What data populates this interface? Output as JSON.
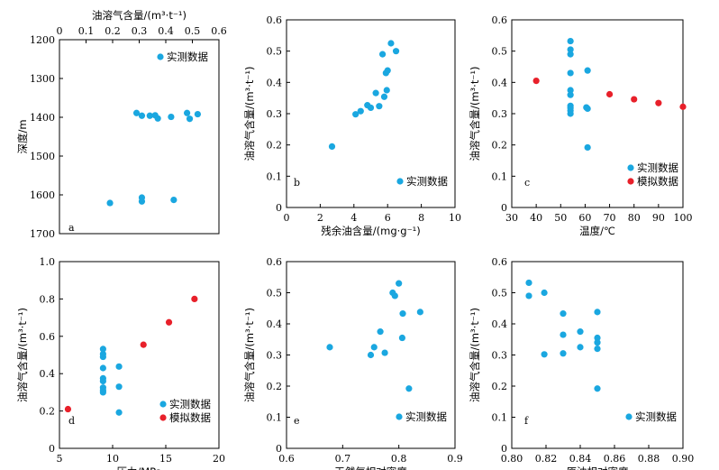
{
  "colors": {
    "measured": "#1aa7e0",
    "simulated": "#e8202a"
  },
  "chart_data": [
    {
      "type": "scatter",
      "panel": "a",
      "xlabel": "油溶气含量/(m³·t⁻¹)",
      "ylabel": "深度/m",
      "xlim": [
        0,
        0.6
      ],
      "ylim": [
        1200,
        1700
      ],
      "x_axis_position": "top",
      "y_inverted": true,
      "xticks": [
        "0",
        "0.1",
        "0.2",
        "0.3",
        "0.4",
        "0.5",
        "0.6"
      ],
      "yticks": [
        "1200",
        "1300",
        "1400",
        "1500",
        "1600",
        "1700"
      ],
      "legend_position": "top-right",
      "series": [
        {
          "name": "实测数据",
          "color": "measured",
          "points": [
            [
              0.19,
              1621
            ],
            [
              0.31,
              1607
            ],
            [
              0.31,
              1617
            ],
            [
              0.43,
              1613
            ],
            [
              0.29,
              1389
            ],
            [
              0.31,
              1396
            ],
            [
              0.34,
              1396
            ],
            [
              0.36,
              1395
            ],
            [
              0.37,
              1403
            ],
            [
              0.42,
              1399
            ],
            [
              0.48,
              1389
            ],
            [
              0.49,
              1404
            ],
            [
              0.52,
              1392
            ]
          ]
        }
      ]
    },
    {
      "type": "scatter",
      "panel": "b",
      "xlabel": "残余油含量/(mg·g⁻¹)",
      "ylabel": "油溶气含量/(m³·t⁻¹)",
      "xlim": [
        0,
        10
      ],
      "ylim": [
        0,
        0.6
      ],
      "xticks": [
        "0",
        "2",
        "4",
        "6",
        "8",
        "10"
      ],
      "yticks": [
        "0",
        "0.1",
        "0.2",
        "0.3",
        "0.4",
        "0.5",
        "0.6"
      ],
      "legend_position": "bottom-right",
      "series": [
        {
          "name": "实测数据",
          "color": "measured",
          "points": [
            [
              2.7,
              0.195
            ],
            [
              4.1,
              0.298
            ],
            [
              4.4,
              0.308
            ],
            [
              4.8,
              0.327
            ],
            [
              5.0,
              0.319
            ],
            [
              5.3,
              0.366
            ],
            [
              5.5,
              0.324
            ],
            [
              5.8,
              0.354
            ],
            [
              5.95,
              0.375
            ],
            [
              5.9,
              0.43
            ],
            [
              6.0,
              0.438
            ],
            [
              5.7,
              0.49
            ],
            [
              6.2,
              0.525
            ],
            [
              6.5,
              0.5
            ]
          ]
        }
      ]
    },
    {
      "type": "scatter",
      "panel": "c",
      "xlabel": "温度/℃",
      "ylabel": "油溶气含量/(m³·t⁻¹)",
      "xlim": [
        30,
        100
      ],
      "ylim": [
        0,
        0.6
      ],
      "xticks": [
        "30",
        "40",
        "50",
        "60",
        "70",
        "80",
        "90",
        "100"
      ],
      "yticks": [
        "0",
        "0.1",
        "0.2",
        "0.3",
        "0.4",
        "0.5",
        "0.6"
      ],
      "legend_position": "bottom-right",
      "series": [
        {
          "name": "实测数据",
          "color": "measured",
          "points": [
            [
              54,
              0.532
            ],
            [
              54,
              0.505
            ],
            [
              54,
              0.49
            ],
            [
              54,
              0.43
            ],
            [
              54,
              0.375
            ],
            [
              54,
              0.36
            ],
            [
              54,
              0.325
            ],
            [
              54,
              0.31
            ],
            [
              54,
              0.3
            ],
            [
              54,
              0.318
            ],
            [
              61,
              0.438
            ],
            [
              60.5,
              0.32
            ],
            [
              61,
              0.316
            ],
            [
              61,
              0.192
            ]
          ]
        },
        {
          "name": "模拟数据",
          "color": "simulated",
          "points": [
            [
              40,
              0.405
            ],
            [
              70,
              0.362
            ],
            [
              80,
              0.346
            ],
            [
              90,
              0.334
            ],
            [
              100,
              0.322
            ]
          ]
        }
      ]
    },
    {
      "type": "scatter",
      "panel": "d",
      "xlabel": "压力/MPa",
      "ylabel": "油溶气含量/(m³·t⁻¹)",
      "xlim": [
        5,
        20
      ],
      "ylim": [
        0,
        1.0
      ],
      "xticks": [
        "5",
        "10",
        "15",
        "20"
      ],
      "yticks": [
        "0",
        "0.2",
        "0.4",
        "0.6",
        "0.8",
        "1.0"
      ],
      "legend_position": "bottom-right",
      "series": [
        {
          "name": "实测数据",
          "color": "measured",
          "points": [
            [
              9.1,
              0.532
            ],
            [
              9.1,
              0.505
            ],
            [
              9.1,
              0.49
            ],
            [
              9.1,
              0.43
            ],
            [
              9.1,
              0.375
            ],
            [
              9.1,
              0.36
            ],
            [
              9.1,
              0.325
            ],
            [
              9.1,
              0.31
            ],
            [
              9.1,
              0.3
            ],
            [
              10.6,
              0.438
            ],
            [
              10.6,
              0.33
            ],
            [
              10.6,
              0.192
            ]
          ]
        },
        {
          "name": "模拟数据",
          "color": "simulated",
          "points": [
            [
              5.8,
              0.21
            ],
            [
              12.9,
              0.555
            ],
            [
              15.3,
              0.675
            ],
            [
              17.7,
              0.8
            ]
          ]
        }
      ]
    },
    {
      "type": "scatter",
      "panel": "e",
      "xlabel": "天然气相对密度",
      "ylabel": "油溶气含量/(m³·t⁻¹)",
      "xlim": [
        0.6,
        0.9
      ],
      "ylim": [
        0,
        0.6
      ],
      "xticks": [
        "0.6",
        "0.7",
        "0.8",
        "0.9"
      ],
      "yticks": [
        "0",
        "0.1",
        "0.2",
        "0.3",
        "0.4",
        "0.5",
        "0.6"
      ],
      "legend_position": "bottom-right",
      "series": [
        {
          "name": "实测数据",
          "color": "measured",
          "points": [
            [
              0.677,
              0.325
            ],
            [
              0.75,
              0.3
            ],
            [
              0.756,
              0.325
            ],
            [
              0.767,
              0.375
            ],
            [
              0.775,
              0.307
            ],
            [
              0.789,
              0.5
            ],
            [
              0.793,
              0.49
            ],
            [
              0.8,
              0.53
            ],
            [
              0.807,
              0.433
            ],
            [
              0.806,
              0.355
            ],
            [
              0.838,
              0.438
            ],
            [
              0.818,
              0.192
            ]
          ]
        }
      ]
    },
    {
      "type": "scatter",
      "panel": "f",
      "xlabel": "原油相对密度",
      "ylabel": "油溶气含量/(m³·t⁻¹)",
      "xlim": [
        0.8,
        0.9
      ],
      "ylim": [
        0,
        0.6
      ],
      "xticks": [
        "0.80",
        "0.82",
        "0.84",
        "0.86",
        "0.88",
        "0.90"
      ],
      "yticks": [
        "0",
        "0.1",
        "0.2",
        "0.3",
        "0.4",
        "0.5",
        "0.6"
      ],
      "legend_position": "bottom-right",
      "series": [
        {
          "name": "实测数据",
          "color": "measured",
          "points": [
            [
              0.81,
              0.532
            ],
            [
              0.81,
              0.49
            ],
            [
              0.819,
              0.5
            ],
            [
              0.819,
              0.302
            ],
            [
              0.83,
              0.433
            ],
            [
              0.83,
              0.365
            ],
            [
              0.83,
              0.305
            ],
            [
              0.84,
              0.375
            ],
            [
              0.84,
              0.325
            ],
            [
              0.85,
              0.438
            ],
            [
              0.85,
              0.355
            ],
            [
              0.85,
              0.34
            ],
            [
              0.85,
              0.32
            ],
            [
              0.85,
              0.192
            ]
          ]
        }
      ]
    }
  ]
}
